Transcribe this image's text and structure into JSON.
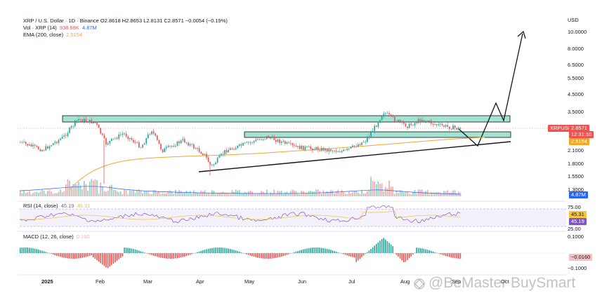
{
  "legend": {
    "main": "XRP / U.S. Dollar · 1D · Binance  O2.8618  H2.8653  L2.8131  C2.8571  −0.0054 (−0.19%)",
    "vol_label": "Vol · XRP (14)",
    "vol_val1": "938.69K",
    "vol_val2": "4.87M",
    "ema_label": "EMA (200, close)",
    "ema_val": "2.5154",
    "rsi_label": "RSI (14, close)",
    "rsi_val1": "45.19",
    "rsi_val2": "45.31",
    "macd_label": "MACD (12, 26, close)",
    "macd_val": "0.160"
  },
  "price_axis": {
    "currency": "USD",
    "ticks": [
      "10.0000",
      "8.0000",
      "6.5000",
      "5.5000",
      "4.5000",
      "3.5000",
      "2.1000",
      "1.8000",
      "1.5500",
      "1.3000"
    ]
  },
  "price_pills": {
    "symbol": "XRPUSD",
    "price": "2.8571",
    "countdown": "12:31:10",
    "ema": "2.5154",
    "vol": "4.87M"
  },
  "rsi_axis": {
    "ticks": [
      "75.00",
      "25.00"
    ],
    "pill1": "45.31",
    "pill2": "45.19"
  },
  "macd_axis": {
    "ticks": [
      "0.1000",
      "−0.1000"
    ],
    "pill": "−0.0160",
    "pill_hidden": "0.0000"
  },
  "time_axis": [
    "2025",
    "Feb",
    "Mar",
    "Apr",
    "May",
    "Jun",
    "Jul",
    "Aug",
    "Sep",
    "Oct"
  ],
  "watermark": "@BeMaster BuySmart",
  "colors": {
    "up": "#26a69a",
    "down": "#ef5350",
    "ema": "#f0a830",
    "zone_fill": "#7ed6c2",
    "rsi": "#7e57c2",
    "rsi_ma": "#f0c24a",
    "volume_ma": "#2962ff",
    "pill_red": "#ef5350",
    "pill_green": "#26a69a",
    "pill_orange": "#f5a623",
    "pill_blue": "#2962ff"
  }
}
